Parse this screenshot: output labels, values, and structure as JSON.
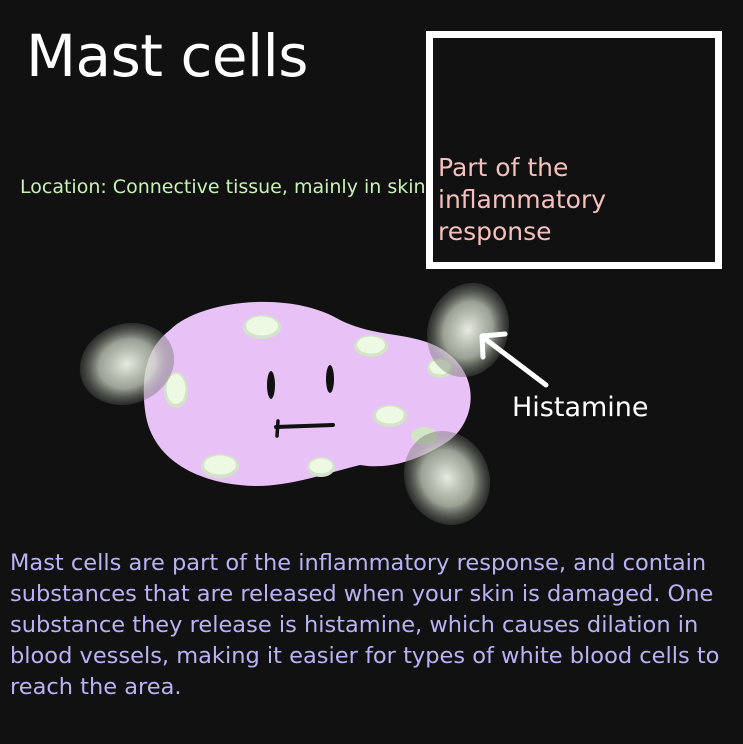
{
  "title": "Mast cells",
  "location_text": "Location: Connective tissue, mainly in skin.",
  "callout": {
    "text": "Part of the inflammatory response"
  },
  "labels": {
    "histamine": "Histamine"
  },
  "description": "Mast cells are part of the inflammatory response, and contain substances that are released when your skin is damaged. One substance they release is histamine, which causes dilation in blood vessels, making it easier for types of white blood cells to reach the area.",
  "colors": {
    "background": "#111112",
    "title": "#ffffff",
    "location": "#c9f2b6",
    "callout_text": "#f5c1be",
    "cell_body": "#e8c2f7",
    "granule": "#e4f7d8",
    "description": "#b9b3f5"
  }
}
